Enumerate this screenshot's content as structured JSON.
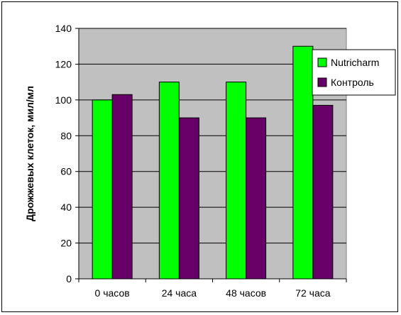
{
  "chart_data": {
    "type": "bar",
    "title": "",
    "xlabel": "",
    "ylabel": "Дрожжевых клеток, мил/мл",
    "ylim": [
      0,
      140
    ],
    "yticks": [
      0,
      20,
      40,
      60,
      80,
      100,
      120,
      140
    ],
    "grid": true,
    "legend": "right",
    "categories": [
      "0 часов",
      "24 часа",
      "48 часов",
      "72 часа"
    ],
    "series": [
      {
        "name": "Nutricharm",
        "color": "#00ff00",
        "values": [
          100,
          110,
          110,
          130
        ]
      },
      {
        "name": "Контроль",
        "color": "#660066",
        "values": [
          103,
          90,
          90,
          97
        ]
      }
    ],
    "plot_background": "#c0c0c0"
  }
}
